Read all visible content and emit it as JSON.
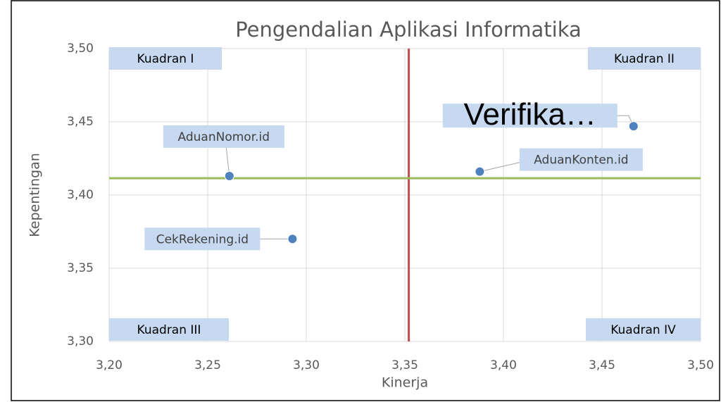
{
  "chart_data": {
    "type": "scatter",
    "title": "Pengendalian Aplikasi Informatika",
    "x_label": "Kinerja",
    "y_label": "Kepentingan",
    "points": [
      {
        "label": "AduanNomor.id",
        "x": 3.261,
        "y": 3.413
      },
      {
        "label": "CekRekening.id",
        "x": 3.293,
        "y": 3.37
      },
      {
        "label": "AduanKonten.id",
        "x": 3.388,
        "y": 3.416
      },
      {
        "label": "Verifika…",
        "x": 3.466,
        "y": 3.447
      }
    ],
    "color": "#4f81bd",
    "xlim": [
      3.2,
      3.5
    ],
    "ylim": [
      3.3,
      3.5
    ],
    "xticks": [
      {
        "value": 3.2,
        "label": "3,20"
      },
      {
        "value": 3.25,
        "label": "3,25"
      },
      {
        "value": 3.3,
        "label": "3,30"
      },
      {
        "value": 3.35,
        "label": "3,35"
      },
      {
        "value": 3.4,
        "label": "3,40"
      },
      {
        "value": 3.45,
        "label": "3,45"
      },
      {
        "value": 3.5,
        "label": "3,50"
      }
    ],
    "yticks": [
      {
        "value": 3.3,
        "label": "3,30"
      },
      {
        "value": 3.35,
        "label": "3,35"
      },
      {
        "value": 3.4,
        "label": "3,40"
      },
      {
        "value": 3.45,
        "label": "3,45"
      },
      {
        "value": 3.5,
        "label": "3,50"
      }
    ],
    "grid": true,
    "vlines": [
      {
        "value": 3.352,
        "color": "#c0504d"
      }
    ],
    "hlines": [
      {
        "value": 3.4115,
        "color": "#9bbb59"
      }
    ],
    "annotations": [
      {
        "text": "Kuadran I",
        "corner": "top-left"
      },
      {
        "text": "Kuadran II",
        "corner": "top-right"
      },
      {
        "text": "Kuadran III",
        "corner": "bottom-left"
      },
      {
        "text": "Kuadran IV",
        "corner": "bottom-right"
      }
    ]
  }
}
